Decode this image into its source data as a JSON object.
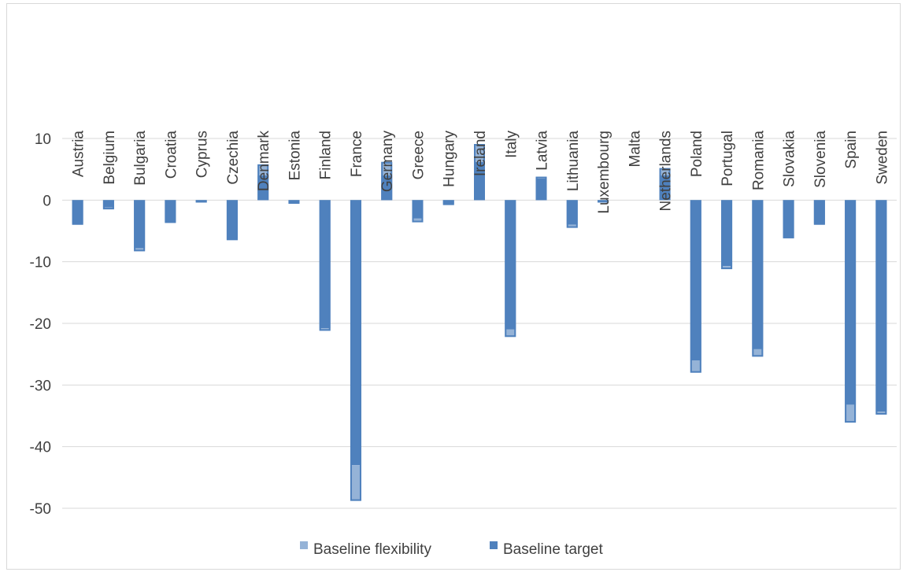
{
  "chart_data": {
    "type": "bar",
    "stacked": true,
    "title": "",
    "xlabel": "",
    "ylabel": "",
    "ylim": [
      -50,
      10
    ],
    "yticks": [
      10,
      0,
      -10,
      -20,
      -30,
      -40,
      -50
    ],
    "grid": true,
    "category_labels_position": "top-rotated",
    "legend_position": "bottom",
    "categories": [
      "Austria",
      "Belgium",
      "Bulgaria",
      "Croatia",
      "Cyprus",
      "Czechia",
      "Denmark",
      "Estonia",
      "Finland",
      "France",
      "Germany",
      "Greece",
      "Hungary",
      "Ireland",
      "Italy",
      "Latvia",
      "Lithuania",
      "Luxembourg",
      "Malta",
      "Netherlands",
      "Poland",
      "Portugal",
      "Romania",
      "Slovakia",
      "Slovenia",
      "Spain",
      "Sweden"
    ],
    "series": [
      {
        "name": "Baseline target",
        "color": "#4f81bd",
        "values": [
          -3.8,
          -1.2,
          -7.8,
          -3.5,
          -0.3,
          -6.3,
          4.0,
          -0.4,
          -20.8,
          -43.0,
          4.0,
          -3.0,
          -0.6,
          6.2,
          -21.0,
          3.5,
          -4.0,
          -0.3,
          0,
          4.0,
          -26.0,
          -10.7,
          -24.2,
          -6.0,
          -3.8,
          -33.2,
          -34.3
        ]
      },
      {
        "name": "Baseline flexibility",
        "color": "#95b3d7",
        "values": [
          -0.2,
          -0.3,
          -0.5,
          -0.2,
          -0.1,
          -0.2,
          1.8,
          -0.2,
          -0.4,
          -5.8,
          2.2,
          -0.6,
          -0.2,
          2.9,
          -1.2,
          0.3,
          -0.5,
          -0.1,
          0,
          1.2,
          -2.0,
          -0.5,
          -1.2,
          -0.2,
          -0.2,
          -2.9,
          -0.5
        ]
      }
    ],
    "legend": [
      "Baseline flexibility",
      "Baseline target"
    ]
  }
}
